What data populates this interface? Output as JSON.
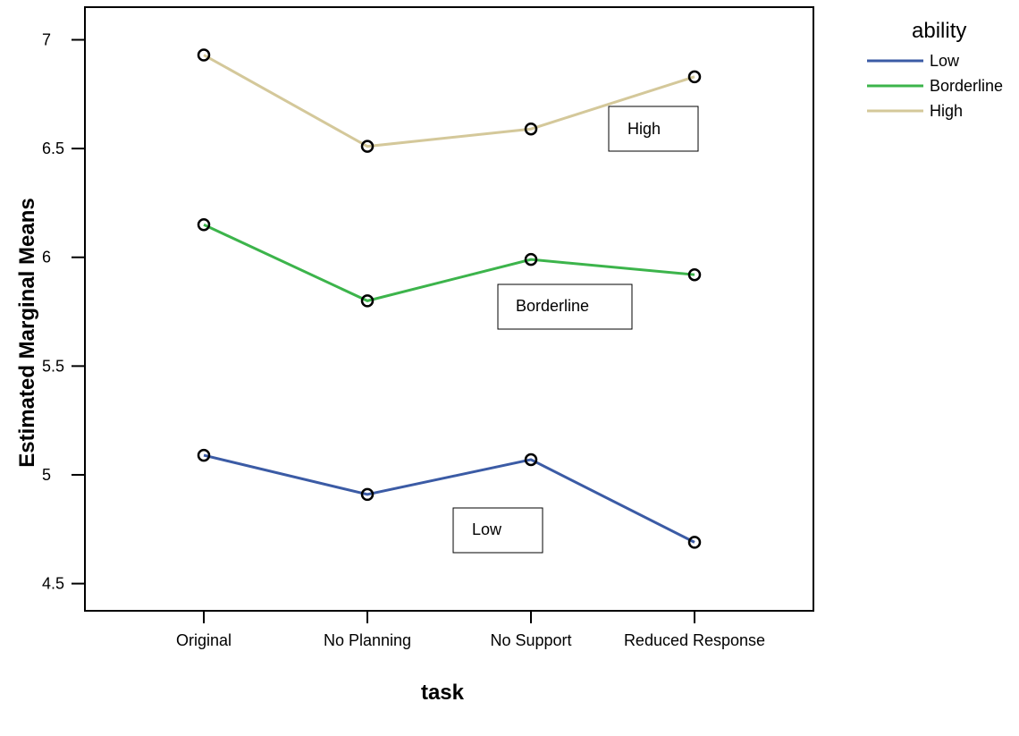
{
  "chart_data": {
    "type": "line",
    "xlabel": "task",
    "ylabel": "Estimated Marginal Means",
    "categories": [
      "Original",
      "No Planning",
      "No Support",
      "Reduced Response"
    ],
    "ylim": [
      4.375,
      7.15
    ],
    "yticks": [
      4.5,
      5,
      5.5,
      6,
      6.5,
      7
    ],
    "ytick_labels": [
      "4.5",
      "5",
      "5.5",
      "6",
      "6.5",
      "7"
    ],
    "grid": false,
    "legend": {
      "title": "ability",
      "placement": "top-right, outside plot"
    },
    "series": [
      {
        "name": "Low",
        "color": "#3b5ba5",
        "values": [
          5.09,
          4.91,
          5.07,
          4.69
        ]
      },
      {
        "name": "Borderline",
        "color": "#3cb44b",
        "values": [
          6.15,
          5.8,
          5.99,
          5.92
        ]
      },
      {
        "name": "High",
        "color": "#d4c89a",
        "values": [
          6.93,
          6.51,
          6.59,
          6.83
        ]
      }
    ],
    "annotations": [
      "High",
      "Borderline",
      "Low"
    ]
  }
}
